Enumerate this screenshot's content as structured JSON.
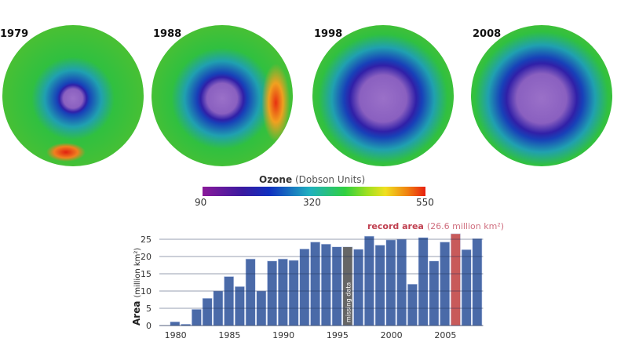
{
  "globes": [
    {
      "year": "1979",
      "hole": 0.35,
      "hot": "bottom"
    },
    {
      "year": "1988",
      "hole": 0.55,
      "hot": "right"
    },
    {
      "year": "1998",
      "hole": 0.85,
      "hot": "none"
    },
    {
      "year": "2008",
      "hole": 0.9,
      "hot": "none"
    }
  ],
  "colorbar": {
    "title": "Ozone",
    "units": "(Dobson Units)",
    "ticks": [
      "90",
      "320",
      "550"
    ]
  },
  "chart_data": {
    "type": "bar",
    "ylabel": "Area",
    "ylabel_units": "(million km²)",
    "ylim": [
      0,
      25
    ],
    "yticks": [
      "0",
      "5",
      "10",
      "15",
      "20",
      "25"
    ],
    "xticks": [
      "1980",
      "1985",
      "1990",
      "1995",
      "2000",
      "2005"
    ],
    "x": [
      1979,
      1980,
      1981,
      1982,
      1983,
      1984,
      1985,
      1986,
      1987,
      1988,
      1989,
      1990,
      1991,
      1992,
      1993,
      1994,
      1995,
      1996,
      1997,
      1998,
      1999,
      2000,
      2001,
      2002,
      2003,
      2004,
      2005,
      2006,
      2007,
      2008
    ],
    "values": [
      0,
      1.1,
      0.4,
      4.7,
      7.9,
      10,
      14.2,
      11.3,
      19.3,
      10,
      18.7,
      19.3,
      18.9,
      22.2,
      24.2,
      23.6,
      22.8,
      22.8,
      22.1,
      25.9,
      23.3,
      24.8,
      25,
      12,
      25.5,
      18.7,
      24.2,
      26.6,
      22,
      25.2
    ],
    "colors": {
      "normal": "#4a6aa8",
      "missing": "#666666",
      "record": "#c85a5a"
    },
    "missing_year": 1996,
    "missing_label": "missing data",
    "record_year": 2006,
    "annotation": {
      "label": "record area",
      "value": "(26.6 million km²)"
    }
  }
}
